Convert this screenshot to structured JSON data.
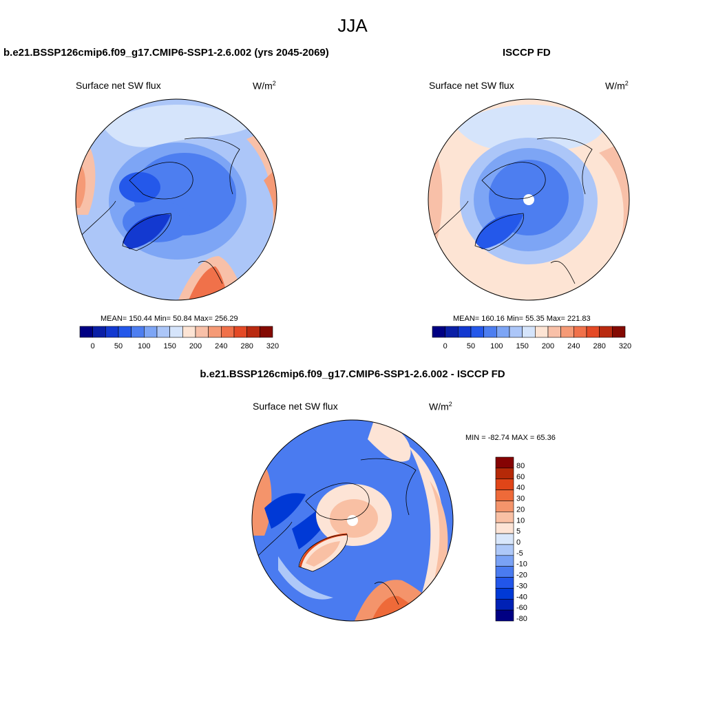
{
  "page": {
    "season_title": "JJA"
  },
  "colors": {
    "model_palette": [
      "#000083",
      "#0a1fa6",
      "#1339d0",
      "#2458ea",
      "#4d7ef0",
      "#7da5f5",
      "#acc6f8",
      "#d5e4fb",
      "#fde4d4",
      "#f8c0a8",
      "#f59a76",
      "#f0714a",
      "#e44a26",
      "#b92a10",
      "#840a02"
    ],
    "diff_palette": [
      "#000083",
      "#0021b5",
      "#0039d6",
      "#2256ea",
      "#4a7bf0",
      "#7aa2f5",
      "#aec8f8",
      "#d9e7fb",
      "#fde4d6",
      "#f9c0a4",
      "#f4946b",
      "#ee6a39",
      "#e04518",
      "#b52908",
      "#850303"
    ],
    "coastline": "#000000",
    "missing": "#ffffff"
  },
  "panels": {
    "model": {
      "case_title": "b.e21.BSSP126cmip6.f09_g17.CMIP6-SSP1-2.6.002 (yrs 2045-2069)",
      "variable": "Surface net SW flux",
      "units_base": "W/m",
      "units_exp": "2",
      "stats": "MEAN= 150.44  Min=  50.84  Max= 256.29",
      "colorbar_labels": [
        "0",
        "50",
        "100",
        "150",
        "200",
        "240",
        "280",
        "320"
      ]
    },
    "obs": {
      "case_title": "ISCCP FD",
      "variable": "Surface net SW flux",
      "units_base": "W/m",
      "units_exp": "2",
      "stats": "MEAN= 160.16  Min=  55.35  Max= 221.83",
      "colorbar_labels": [
        "0",
        "50",
        "100",
        "150",
        "200",
        "240",
        "280",
        "320"
      ]
    },
    "diff": {
      "case_title": "b.e21.BSSP126cmip6.f09_g17.CMIP6-SSP1-2.6.002 - ISCCP FD",
      "variable": "Surface net SW flux",
      "units_base": "W/m",
      "units_exp": "2",
      "stats": "MIN = -82.74 MAX =  65.36",
      "colorbar_labels": [
        "80",
        "60",
        "40",
        "30",
        "20",
        "10",
        "5",
        "0",
        "-5",
        "-10",
        "-20",
        "-30",
        "-40",
        "-60",
        "-80"
      ]
    }
  }
}
